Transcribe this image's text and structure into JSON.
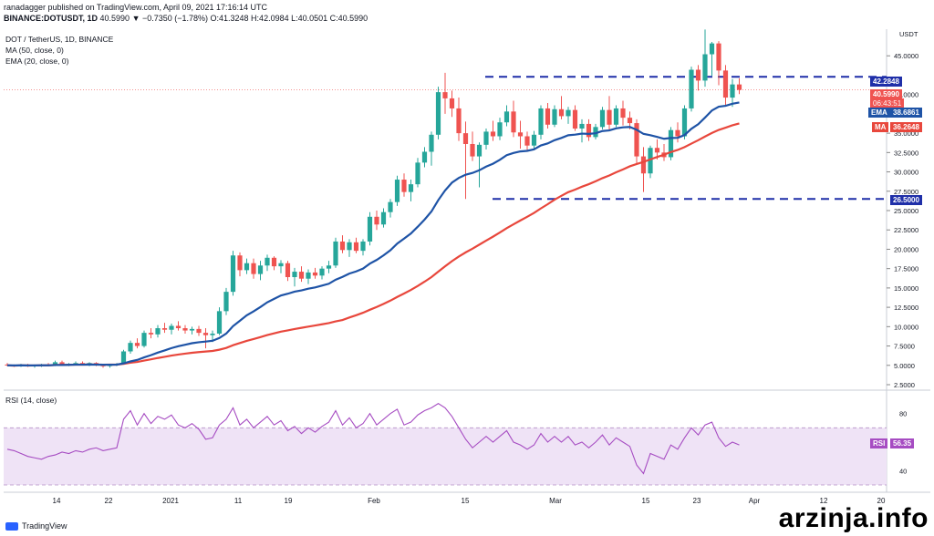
{
  "header": {
    "line1": "ranadagger published on TradingView.com, April 09, 2021 17:16:14 UTC",
    "symbol": "BINANCE:DOTUSDT, 1D",
    "quote": "40.5990 ▼ −0.7350 (−1.78%) O:41.3248 H:42.0984 L:40.0501 C:40.5990"
  },
  "indicators": {
    "title": "DOT / TetherUS, 1D, BINANCE",
    "ma": "MA (50, close, 0)",
    "ema": "EMA (20, close, 0)",
    "rsi": "RSI (14, close)"
  },
  "price_tags": {
    "upper_line": "42.2848",
    "last": "40.5990",
    "countdown": "06:43:51",
    "ema_label": "EMA",
    "ema": "38.6861",
    "ma_label": "MA",
    "ma": "36.2648",
    "lower_line": "26.5000",
    "rsi_label": "RSI",
    "rsi": "56.35"
  },
  "colors": {
    "up": "#26a69a",
    "down": "#ef5350",
    "ema": "#1e53a6",
    "ma": "#e8473c",
    "rsi": "#a64cc2",
    "rsi_band": "#efe3f6",
    "dashed": "#1f2fa8"
  },
  "footer": {
    "logo": "TradingView",
    "watermark": "arzinja.info"
  },
  "chart_data": [
    {
      "type": "candlestick",
      "title": "DOT / TetherUS, 1D, BINANCE",
      "y_unit": "USDT",
      "y_ticks": [
        "2.5000",
        "5.0000",
        "7.5000",
        "10.0000",
        "12.5000",
        "15.0000",
        "17.5000",
        "20.0000",
        "22.5000",
        "25.0000",
        "27.5000",
        "30.0000",
        "32.5000",
        "35.0000",
        "40.0000",
        "45.0000"
      ],
      "y_top_label": "USDT",
      "x_ticks": [
        "14",
        "22",
        "2021",
        "11",
        "19",
        "Feb",
        "15",
        "Mar",
        "15",
        "23",
        "Apr",
        "12",
        "20"
      ],
      "horizontal_lines": [
        42.2848,
        26.5
      ],
      "ohlc": [
        [
          5.1,
          5.3,
          4.9,
          5.0
        ],
        [
          5.0,
          5.1,
          4.8,
          4.9
        ],
        [
          4.9,
          5.2,
          4.8,
          5.1
        ],
        [
          5.1,
          5.2,
          4.8,
          4.9
        ],
        [
          4.9,
          5.1,
          4.7,
          5.0
        ],
        [
          5.0,
          5.2,
          4.8,
          5.1
        ],
        [
          5.1,
          5.3,
          4.9,
          5.0
        ],
        [
          5.0,
          5.6,
          4.9,
          5.4
        ],
        [
          5.4,
          5.6,
          5.0,
          5.1
        ],
        [
          5.1,
          5.3,
          4.9,
          5.2
        ],
        [
          5.2,
          5.5,
          5.0,
          5.3
        ],
        [
          5.3,
          5.5,
          5.0,
          5.1
        ],
        [
          5.1,
          5.4,
          4.9,
          5.3
        ],
        [
          5.3,
          5.4,
          4.9,
          5.0
        ],
        [
          5.0,
          5.2,
          4.7,
          4.9
        ],
        [
          4.9,
          5.2,
          4.7,
          5.1
        ],
        [
          5.1,
          5.3,
          4.9,
          5.2
        ],
        [
          5.2,
          7.0,
          5.1,
          6.8
        ],
        [
          6.8,
          8.2,
          6.5,
          7.9
        ],
        [
          7.9,
          8.5,
          7.2,
          7.5
        ],
        [
          7.5,
          9.5,
          7.3,
          9.2
        ],
        [
          9.2,
          9.8,
          8.5,
          9.0
        ],
        [
          9.0,
          10.2,
          8.6,
          9.8
        ],
        [
          9.8,
          10.5,
          9.2,
          9.6
        ],
        [
          9.6,
          10.4,
          9.0,
          10.1
        ],
        [
          10.1,
          10.7,
          9.5,
          9.8
        ],
        [
          9.8,
          10.2,
          9.1,
          9.5
        ],
        [
          9.5,
          10.0,
          9.0,
          9.7
        ],
        [
          9.7,
          10.1,
          8.8,
          9.2
        ],
        [
          9.2,
          9.8,
          7.2,
          8.9
        ],
        [
          8.9,
          9.5,
          8.0,
          9.1
        ],
        [
          9.1,
          12.5,
          8.9,
          12.0
        ],
        [
          12.0,
          15.0,
          11.5,
          14.5
        ],
        [
          14.5,
          19.8,
          14.0,
          19.2
        ],
        [
          19.2,
          19.6,
          16.5,
          17.3
        ],
        [
          17.3,
          18.8,
          16.8,
          18.2
        ],
        [
          18.2,
          18.8,
          16.2,
          16.8
        ],
        [
          16.8,
          18.5,
          16.0,
          17.9
        ],
        [
          17.9,
          19.3,
          17.2,
          18.9
        ],
        [
          18.9,
          19.1,
          17.3,
          17.8
        ],
        [
          17.8,
          18.6,
          16.9,
          18.2
        ],
        [
          18.2,
          18.5,
          15.9,
          16.4
        ],
        [
          16.4,
          17.6,
          15.2,
          17.1
        ],
        [
          17.1,
          17.8,
          15.8,
          16.2
        ],
        [
          16.2,
          17.4,
          15.5,
          17.0
        ],
        [
          17.0,
          17.6,
          16.2,
          16.6
        ],
        [
          16.6,
          17.8,
          16.1,
          17.5
        ],
        [
          17.5,
          18.5,
          16.9,
          17.9
        ],
        [
          17.9,
          21.5,
          17.6,
          21.0
        ],
        [
          21.0,
          21.8,
          19.5,
          19.9
        ],
        [
          19.9,
          21.3,
          19.0,
          20.9
        ],
        [
          20.9,
          21.5,
          19.5,
          19.8
        ],
        [
          19.8,
          21.3,
          19.2,
          21.0
        ],
        [
          21.0,
          24.8,
          20.5,
          24.2
        ],
        [
          24.2,
          25.0,
          22.5,
          23.2
        ],
        [
          23.2,
          25.3,
          22.8,
          24.8
        ],
        [
          24.8,
          26.5,
          24.1,
          26.1
        ],
        [
          26.1,
          29.5,
          25.6,
          29.0
        ],
        [
          29.0,
          29.8,
          26.8,
          27.4
        ],
        [
          27.4,
          29.0,
          26.2,
          28.4
        ],
        [
          28.4,
          31.8,
          28.0,
          31.2
        ],
        [
          31.2,
          33.2,
          30.6,
          32.6
        ],
        [
          32.6,
          35.2,
          30.8,
          34.8
        ],
        [
          34.8,
          41.0,
          34.2,
          40.3
        ],
        [
          40.3,
          42.8,
          37.5,
          39.5
        ],
        [
          39.5,
          40.5,
          37.1,
          38.2
        ],
        [
          38.2,
          39.6,
          34.0,
          35.0
        ],
        [
          35.0,
          36.5,
          26.5,
          33.6
        ],
        [
          33.6,
          35.2,
          31.4,
          32.0
        ],
        [
          32.0,
          33.8,
          28.0,
          33.5
        ],
        [
          33.5,
          35.6,
          32.9,
          35.2
        ],
        [
          35.2,
          36.6,
          34.0,
          34.6
        ],
        [
          34.6,
          37.0,
          34.1,
          36.4
        ],
        [
          36.4,
          38.6,
          35.9,
          37.8
        ],
        [
          37.8,
          39.2,
          34.5,
          35.1
        ],
        [
          35.1,
          36.6,
          33.0,
          34.6
        ],
        [
          34.6,
          35.2,
          32.8,
          33.4
        ],
        [
          33.4,
          35.3,
          33.0,
          34.8
        ],
        [
          34.8,
          38.6,
          34.2,
          38.2
        ],
        [
          38.2,
          38.9,
          35.6,
          36.1
        ],
        [
          36.1,
          38.6,
          35.8,
          38.1
        ],
        [
          38.1,
          39.8,
          36.8,
          37.2
        ],
        [
          37.2,
          38.4,
          36.2,
          38.0
        ],
        [
          38.0,
          38.6,
          35.3,
          35.6
        ],
        [
          35.6,
          36.8,
          33.8,
          36.2
        ],
        [
          36.2,
          36.8,
          34.0,
          34.5
        ],
        [
          34.5,
          36.2,
          34.2,
          35.8
        ],
        [
          35.8,
          38.4,
          35.5,
          38.0
        ],
        [
          38.0,
          39.8,
          35.4,
          36.1
        ],
        [
          36.1,
          38.6,
          35.8,
          38.2
        ],
        [
          38.2,
          39.2,
          36.0,
          37.0
        ],
        [
          37.0,
          37.8,
          35.5,
          36.3
        ],
        [
          36.3,
          36.8,
          31.0,
          32.0
        ],
        [
          32.0,
          33.2,
          27.4,
          29.8
        ],
        [
          29.8,
          33.4,
          29.2,
          33.1
        ],
        [
          33.1,
          34.2,
          31.6,
          32.5
        ],
        [
          32.5,
          33.6,
          31.4,
          31.9
        ],
        [
          31.9,
          35.8,
          31.5,
          35.4
        ],
        [
          35.4,
          36.4,
          33.8,
          34.6
        ],
        [
          34.6,
          38.6,
          34.2,
          38.2
        ],
        [
          38.2,
          43.6,
          37.8,
          43.2
        ],
        [
          43.2,
          43.8,
          40.5,
          41.8
        ],
        [
          41.8,
          48.4,
          41.0,
          45.2
        ],
        [
          45.2,
          46.8,
          42.4,
          46.6
        ],
        [
          46.6,
          46.9,
          41.2,
          43.1
        ],
        [
          43.1,
          43.8,
          38.6,
          39.6
        ],
        [
          39.6,
          42.0,
          38.4,
          41.3
        ],
        [
          41.3,
          42.1,
          40.05,
          40.599
        ]
      ],
      "ema_20_last": 38.6861,
      "ma_50_last": 36.2648
    },
    {
      "type": "line",
      "title": "RSI (14, close)",
      "series_name": "RSI",
      "y_ticks": [
        "40",
        "60",
        "80"
      ],
      "band": [
        30,
        70
      ],
      "values": [
        55,
        54,
        52,
        50,
        49,
        48,
        50,
        51,
        53,
        52,
        54,
        53,
        55,
        56,
        54,
        55,
        56,
        76,
        82,
        72,
        80,
        73,
        78,
        76,
        79,
        72,
        70,
        73,
        69,
        62,
        63,
        72,
        76,
        84,
        72,
        76,
        70,
        74,
        78,
        72,
        75,
        68,
        71,
        66,
        70,
        67,
        71,
        74,
        82,
        72,
        77,
        70,
        73,
        80,
        72,
        76,
        80,
        83,
        72,
        74,
        79,
        82,
        84,
        87,
        84,
        78,
        70,
        62,
        56,
        60,
        64,
        60,
        64,
        68,
        60,
        58,
        55,
        58,
        66,
        60,
        64,
        60,
        64,
        58,
        60,
        56,
        60,
        65,
        58,
        63,
        60,
        57,
        44,
        38,
        52,
        50,
        48,
        58,
        55,
        63,
        70,
        65,
        72,
        74,
        63,
        57,
        60,
        58
      ]
    }
  ]
}
